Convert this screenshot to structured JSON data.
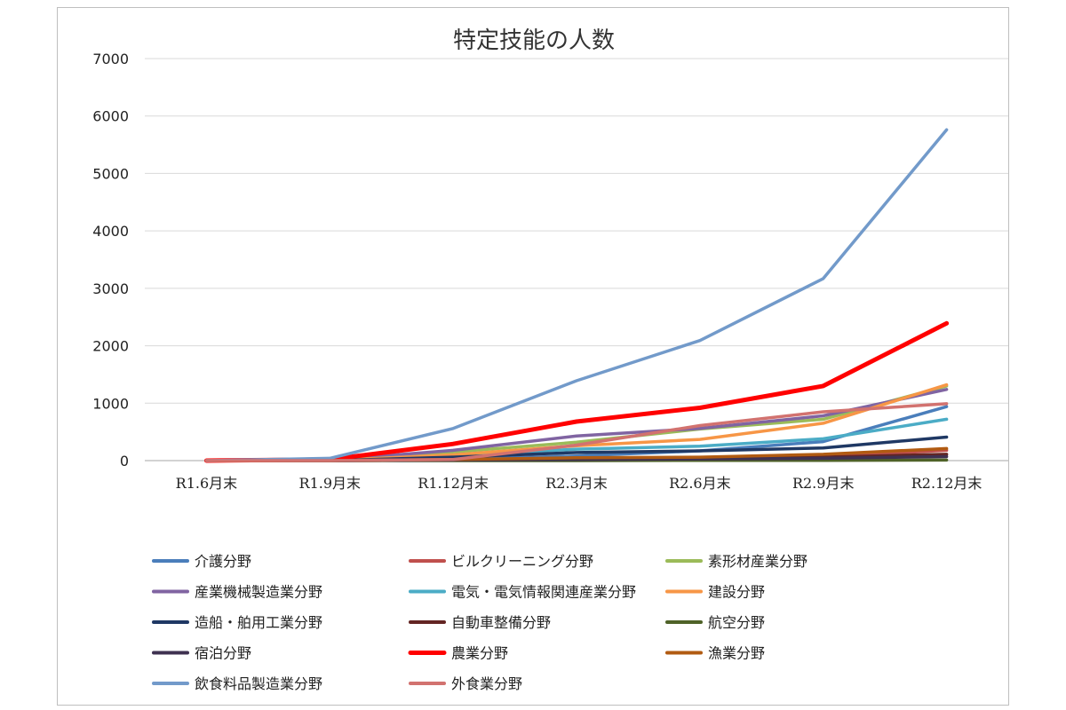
{
  "chart_data": {
    "type": "line",
    "title": "特定技能の人数",
    "xlabel": "",
    "ylabel": "",
    "ylim": [
      0,
      7000
    ],
    "yticks": [
      0,
      1000,
      2000,
      3000,
      4000,
      5000,
      6000,
      7000
    ],
    "grid": true,
    "legend_position": "bottom",
    "categories": [
      "R1.6月末",
      "R1.9月末",
      "R1.12月末",
      "R2.3月末",
      "R2.6月末",
      "R2.9月末",
      "R2.12月末"
    ],
    "series": [
      {
        "name": "介護分野",
        "color": "#4a7ebb",
        "values": [
          0,
          0,
          20,
          80,
          170,
          330,
          940
        ]
      },
      {
        "name": "ビルクリーニング分野",
        "color": "#c0504d",
        "values": [
          0,
          0,
          10,
          30,
          50,
          70,
          180
        ]
      },
      {
        "name": "素形材産業分野",
        "color": "#9bbb59",
        "values": [
          0,
          10,
          150,
          320,
          550,
          720,
          1300
        ]
      },
      {
        "name": "産業機械製造業分野",
        "color": "#8064a2",
        "values": [
          0,
          10,
          180,
          430,
          560,
          780,
          1240
        ]
      },
      {
        "name": "電気・電気情報関連産業分野",
        "color": "#4bacc6",
        "values": [
          0,
          10,
          90,
          200,
          250,
          380,
          720
        ]
      },
      {
        "name": "建設分野",
        "color": "#f79646",
        "values": [
          0,
          0,
          100,
          260,
          370,
          650,
          1320
        ]
      },
      {
        "name": "造船・舶用工業分野",
        "color": "#1f3864",
        "values": [
          0,
          0,
          60,
          140,
          170,
          220,
          410
        ]
      },
      {
        "name": "自動車整備分野",
        "color": "#632523",
        "values": [
          0,
          0,
          10,
          20,
          40,
          60,
          110
        ]
      },
      {
        "name": "航空分野",
        "color": "#4f6228",
        "values": [
          0,
          0,
          0,
          0,
          5,
          5,
          10
        ]
      },
      {
        "name": "宿泊分野",
        "color": "#3f3151",
        "values": [
          0,
          0,
          10,
          20,
          30,
          40,
          70
        ]
      },
      {
        "name": "農業分野",
        "color": "#ff0000",
        "values": [
          0,
          20,
          290,
          680,
          920,
          1300,
          2390
        ]
      },
      {
        "name": "漁業分野",
        "color": "#b15b12",
        "values": [
          0,
          0,
          20,
          50,
          60,
          110,
          210
        ]
      },
      {
        "name": "飲食料品製造業分野",
        "color": "#729aca",
        "values": [
          0,
          40,
          560,
          1390,
          2090,
          3170,
          5760
        ]
      },
      {
        "name": "外食業分野",
        "color": "#d2726f",
        "values": [
          0,
          0,
          20,
          270,
          610,
          850,
          990
        ]
      }
    ]
  }
}
